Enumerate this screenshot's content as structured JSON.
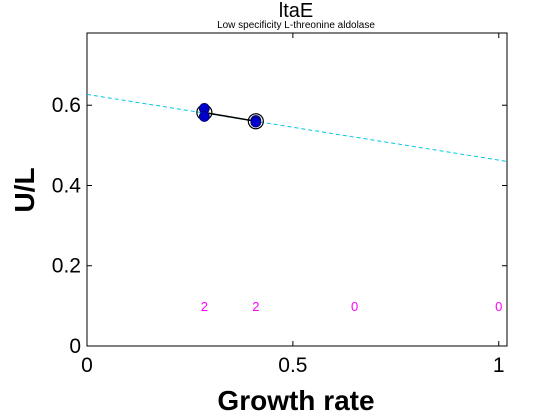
{
  "chart_data": {
    "type": "scatter",
    "title": "ltaE",
    "subtitle": "Low specificity L-threonine aldolase",
    "xlabel": "Growth rate",
    "ylabel": "U/L",
    "xlim": [
      0,
      1.02
    ],
    "ylim": [
      0,
      0.78
    ],
    "x_ticks": [
      0,
      0.5,
      1
    ],
    "x_tick_labels": [
      "0",
      "0.5",
      "1"
    ],
    "y_ticks": [
      0,
      0.2,
      0.4,
      0.6
    ],
    "y_tick_labels": [
      "0",
      "0.2",
      "0.4",
      "0.6"
    ],
    "grid": false,
    "points": [
      {
        "x": 0.285,
        "y": 0.592
      },
      {
        "x": 0.285,
        "y": 0.572
      },
      {
        "x": 0.41,
        "y": 0.562
      },
      {
        "x": 0.41,
        "y": 0.558
      }
    ],
    "means": [
      {
        "x": 0.285,
        "y": 0.582
      },
      {
        "x": 0.41,
        "y": 0.56
      }
    ],
    "fit_line": {
      "x": [
        0,
        1.02
      ],
      "y": [
        0.627,
        0.46
      ]
    },
    "sample_counts": [
      {
        "x": 0.285,
        "y": 0.1,
        "label": "2"
      },
      {
        "x": 0.41,
        "y": 0.1,
        "label": "2"
      },
      {
        "x": 0.65,
        "y": 0.1,
        "label": "0"
      },
      {
        "x": 1.0,
        "y": 0.1,
        "label": "0"
      }
    ],
    "colors": {
      "points": "#0000cc",
      "mean_line": "#000000",
      "fit_line": "#00c8e6",
      "counts": "#ff00ff"
    }
  }
}
